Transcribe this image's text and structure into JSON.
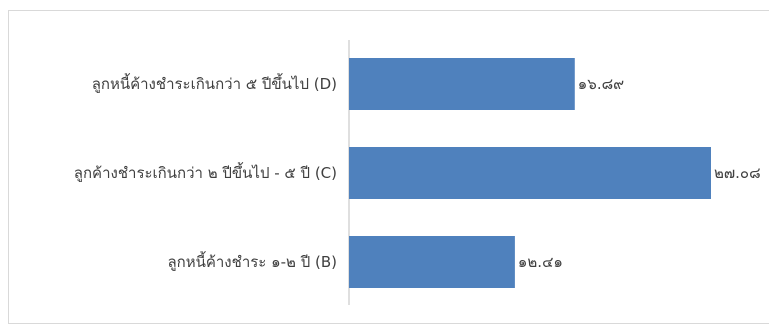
{
  "chart_data": {
    "type": "bar",
    "orientation": "horizontal",
    "categories": [
      "ลูกหนี้ค้างชำระเกินกว่า ๕ ปีขึ้นไป (D)",
      "ลูกค้างชำระเกินกว่า ๒ ปีขึ้นไป - ๕ ปี (C)",
      "ลูกหนี้ค้างชำระ ๑-๒ ปี (B)"
    ],
    "values": [
      16.89,
      27.08,
      12.41
    ],
    "data_labels": [
      "๑๖.๘๙",
      "๒๗.๐๘",
      "๑๒.๔๑"
    ],
    "title": "",
    "xlabel": "",
    "ylabel": "",
    "xlim": [
      0,
      28
    ],
    "grid": false,
    "legend": "none",
    "bar_color": "#4f81bd"
  }
}
